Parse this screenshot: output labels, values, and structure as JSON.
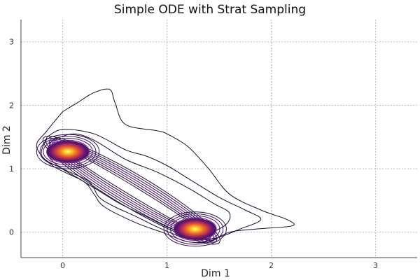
{
  "chart_data": {
    "type": "contour",
    "title": "Simple ODE with Strat Sampling",
    "xlabel": "Dim 1",
    "ylabel": "Dim 2",
    "xlim": [
      -0.4,
      3.4
    ],
    "ylim": [
      -0.4,
      3.35
    ],
    "xticks": [
      0,
      1,
      2,
      3
    ],
    "yticks": [
      0,
      1,
      2,
      3
    ],
    "grid": true,
    "colormap": "inferno",
    "modes": [
      {
        "name": "",
        "x": 0.05,
        "y": 1.27
      },
      {
        "name": "",
        "x": 1.27,
        "y": 0.05
      }
    ],
    "outer_contours": [
      {
        "level": 1,
        "points": [
          [
            0.0,
            1.9
          ],
          [
            0.15,
            2.05
          ],
          [
            0.3,
            2.2
          ],
          [
            0.45,
            2.25
          ],
          [
            0.5,
            2.05
          ],
          [
            0.6,
            1.7
          ],
          [
            0.9,
            1.6
          ],
          [
            1.0,
            1.55
          ],
          [
            1.2,
            1.35
          ],
          [
            1.4,
            1.0
          ],
          [
            1.6,
            0.6
          ],
          [
            1.9,
            0.35
          ],
          [
            2.15,
            0.2
          ],
          [
            2.2,
            0.1
          ],
          [
            1.85,
            0.05
          ],
          [
            1.6,
            0.0
          ],
          [
            1.4,
            -0.15
          ],
          [
            1.2,
            -0.15
          ],
          [
            0.95,
            0.0
          ],
          [
            0.7,
            0.15
          ],
          [
            0.4,
            0.4
          ],
          [
            0.3,
            0.6
          ],
          [
            0.2,
            0.8
          ],
          [
            -0.1,
            1.05
          ],
          [
            -0.25,
            1.35
          ],
          [
            -0.15,
            1.6
          ],
          [
            0.0,
            1.9
          ]
        ]
      },
      {
        "level": 2,
        "points": [
          [
            -0.15,
            1.5
          ],
          [
            0.0,
            1.62
          ],
          [
            0.3,
            1.55
          ],
          [
            0.6,
            1.3
          ],
          [
            0.8,
            1.2
          ],
          [
            1.0,
            1.05
          ],
          [
            1.2,
            0.85
          ],
          [
            1.5,
            0.55
          ],
          [
            1.75,
            0.35
          ],
          [
            1.9,
            0.2
          ],
          [
            1.7,
            0.05
          ],
          [
            1.45,
            -0.1
          ],
          [
            1.2,
            -0.1
          ],
          [
            0.95,
            0.05
          ],
          [
            0.7,
            0.25
          ],
          [
            0.5,
            0.4
          ],
          [
            0.35,
            0.55
          ],
          [
            0.25,
            0.8
          ],
          [
            0.0,
            1.0
          ],
          [
            -0.2,
            1.2
          ],
          [
            -0.15,
            1.5
          ]
        ]
      },
      {
        "level": 3,
        "points": [
          [
            -0.1,
            1.45
          ],
          [
            0.1,
            1.55
          ],
          [
            0.3,
            1.45
          ],
          [
            0.6,
            1.15
          ],
          [
            0.9,
            0.95
          ],
          [
            1.2,
            0.7
          ],
          [
            1.45,
            0.45
          ],
          [
            1.6,
            0.3
          ],
          [
            1.55,
            0.1
          ],
          [
            1.3,
            -0.05
          ],
          [
            1.05,
            0.05
          ],
          [
            0.8,
            0.25
          ],
          [
            0.55,
            0.45
          ],
          [
            0.35,
            0.65
          ],
          [
            0.15,
            0.85
          ],
          [
            -0.05,
            1.05
          ],
          [
            -0.15,
            1.25
          ],
          [
            -0.1,
            1.45
          ]
        ]
      }
    ]
  }
}
